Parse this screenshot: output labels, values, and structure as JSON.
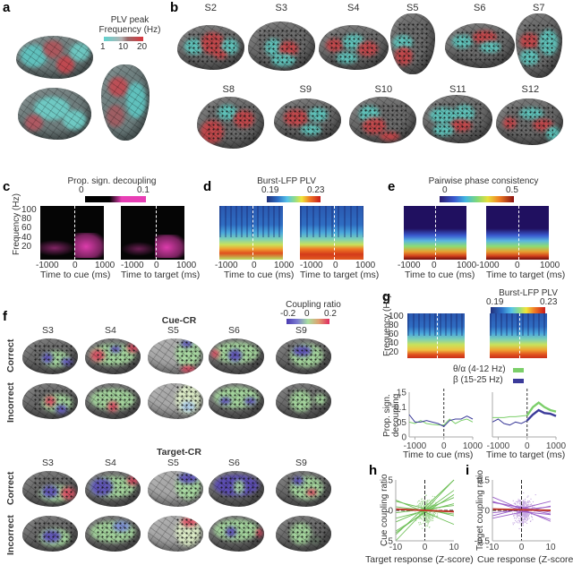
{
  "figure": {
    "panel_labels": [
      "a",
      "b",
      "c",
      "d",
      "e",
      "f",
      "g",
      "h",
      "i"
    ]
  },
  "panel_a": {
    "colorbar_title_1": "PLV peak",
    "colorbar_title_2": "Frequency (Hz)",
    "colorbar_ticks": [
      "1",
      "10",
      "20"
    ],
    "colorbar_colors": [
      "#5fd3cf",
      "#9a6a6a",
      "#d9343c"
    ],
    "views": [
      "lateral-left",
      "lateral-right",
      "dorsal"
    ]
  },
  "panel_b": {
    "subjects_row1": [
      "S2",
      "S3",
      "S4",
      "S5",
      "S6",
      "S7"
    ],
    "subjects_row2": [
      "S8",
      "S9",
      "S10",
      "S11",
      "S12"
    ],
    "colors": {
      "low": "#5ec9c0",
      "high": "#c84448"
    }
  },
  "panel_c": {
    "colorbar_title": "Prop. sign. decoupling",
    "colorbar_ticks": [
      "0",
      "0.1"
    ],
    "colorbar_colors": [
      "#000000",
      "#e83fb5"
    ],
    "ylabel": "Frequency (Hz)",
    "yticks": [
      "100",
      "80",
      "60",
      "40",
      "20"
    ],
    "xticks": [
      "-1000",
      "0",
      "1000"
    ],
    "xlabel_left": "Time to cue (ms)",
    "xlabel_right": "Time to target (ms)"
  },
  "panel_d": {
    "colorbar_title": "Burst-LFP PLV",
    "colorbar_ticks": [
      "0.19",
      "0.23"
    ],
    "xticks": [
      "-1000",
      "0",
      "1000"
    ],
    "xlabel_left": "Time to cue (ms)",
    "xlabel_right": "Time to target (ms)"
  },
  "panel_e": {
    "colorbar_title": "Pairwise phase consistency",
    "colorbar_ticks": [
      "0",
      "0.5"
    ],
    "xticks": [
      "-1000",
      "0",
      "1000"
    ],
    "xlabel_left": "Time to cue (ms)",
    "xlabel_right": "Time to target (ms)"
  },
  "panel_f": {
    "colorbar_title": "Coupling ratio",
    "colorbar_ticks": [
      "-0.2",
      "0",
      "0.2"
    ],
    "section1_title": "Cue-CR",
    "section2_title": "Target-CR",
    "subjects": [
      "S3",
      "S4",
      "S5",
      "S6",
      "S9"
    ],
    "row_labels": [
      "Correct",
      "Incorrect"
    ]
  },
  "panel_g": {
    "colorbar_title": "Burst-LFP PLV",
    "colorbar_ticks": [
      "0.19",
      "0.23"
    ],
    "heatmap_ylabel": "Frequency (Hz)",
    "heatmap_yticks": [
      "100",
      "80",
      "60",
      "40",
      "20"
    ],
    "legend": [
      {
        "label": "θ/α (4-12 Hz)",
        "color": "#7ccf6a"
      },
      {
        "label": "β  (15-25 Hz)",
        "color": "#3b3b9a"
      }
    ],
    "line_ylabel_1": "Prop. sign.",
    "line_ylabel_2": "decoupling",
    "line_yticks": [
      "0.15",
      "0.1",
      "0.05",
      "0"
    ],
    "xticks": [
      "-1000",
      "0",
      "1000"
    ],
    "xlabel_left": "Time to cue (ms)",
    "xlabel_right": "Time to target (ms)"
  },
  "panel_h": {
    "ylabel": "Cue coupling ratio",
    "xlabel": "Target response (Z-score)",
    "yticks": [
      "0.5",
      "0",
      "-0.5"
    ],
    "xticks": [
      "-10",
      "0",
      "10"
    ],
    "scatter_color": "#a8d89a",
    "line_color": "#6cbf55",
    "mean_color": "#c0392b"
  },
  "panel_i": {
    "ylabel": "Target coupling ratio",
    "xlabel": "Cue response (Z-score)",
    "yticks": [
      "0.5",
      "0",
      "-0.5"
    ],
    "xticks": [
      "-10",
      "0",
      "10"
    ],
    "scatter_color": "#c5a8e0",
    "line_color": "#9a5ec8",
    "mean_color": "#c0392b"
  },
  "chart_data": [
    {
      "type": "line",
      "title": "Prop. sign. decoupling — time to cue",
      "xlabel": "Time to cue (ms)",
      "ylabel": "Prop. sign. decoupling",
      "xlim": [
        -1200,
        1000
      ],
      "ylim": [
        0,
        0.15
      ],
      "x": [
        -1200,
        -1000,
        -800,
        -600,
        -400,
        -200,
        0,
        200,
        400,
        600,
        800,
        1000
      ],
      "series": [
        {
          "name": "θ/α (4-12 Hz)",
          "values": [
            0.05,
            0.045,
            0.055,
            0.045,
            0.042,
            0.04,
            0.04,
            0.06,
            0.045,
            0.055,
            0.06,
            0.05
          ]
        },
        {
          "name": "β (15-25 Hz)",
          "values": [
            0.075,
            0.05,
            0.05,
            0.055,
            0.05,
            0.045,
            0.035,
            0.055,
            0.06,
            0.06,
            0.07,
            0.06
          ]
        }
      ]
    },
    {
      "type": "line",
      "title": "Prop. sign. decoupling — time to target",
      "xlabel": "Time to target (ms)",
      "ylabel": "Prop. sign. decoupling",
      "xlim": [
        -1200,
        1000
      ],
      "ylim": [
        0,
        0.15
      ],
      "x": [
        -1200,
        -1000,
        -800,
        -600,
        -400,
        -200,
        0,
        200,
        400,
        600,
        800,
        1000
      ],
      "series": [
        {
          "name": "θ/α (4-12 Hz)",
          "values": [
            0.065,
            0.065,
            0.065,
            0.068,
            0.068,
            0.07,
            0.072,
            0.1,
            0.115,
            0.1,
            0.09,
            0.085
          ]
        },
        {
          "name": "β (15-25 Hz)",
          "values": [
            0.05,
            0.06,
            0.045,
            0.04,
            0.05,
            0.045,
            0.055,
            0.075,
            0.09,
            0.08,
            0.078,
            0.07
          ]
        }
      ]
    },
    {
      "type": "scatter",
      "title": "h",
      "xlabel": "Target response (Z-score)",
      "ylabel": "Cue coupling ratio",
      "xlim": [
        -10,
        10
      ],
      "ylim": [
        -0.5,
        0.5
      ],
      "fit_slopes": [
        0.05,
        0.035,
        0.02,
        0.012,
        0.006,
        -0.006,
        -0.012,
        -0.02,
        0.03,
        0.045
      ],
      "fit_intercepts": [
        0.0,
        -0.02,
        0.01,
        -0.01,
        0.02,
        0.0,
        0.03,
        -0.03,
        -0.04,
        0.05
      ],
      "mean_fit": {
        "slope": -0.002,
        "intercept": 0.0
      }
    },
    {
      "type": "scatter",
      "title": "i",
      "xlabel": "Cue response (Z-score)",
      "ylabel": "Target coupling ratio",
      "xlim": [
        -10,
        10
      ],
      "ylim": [
        -0.5,
        0.5
      ],
      "fit_slopes": [
        -0.02,
        -0.015,
        -0.01,
        -0.005,
        0.005,
        0.01,
        0.012,
        -0.008
      ],
      "fit_intercepts": [
        0.02,
        0.0,
        0.04,
        -0.02,
        0.01,
        -0.03,
        0.03,
        0.05
      ],
      "mean_fit": {
        "slope": -0.001,
        "intercept": 0.01
      }
    }
  ]
}
